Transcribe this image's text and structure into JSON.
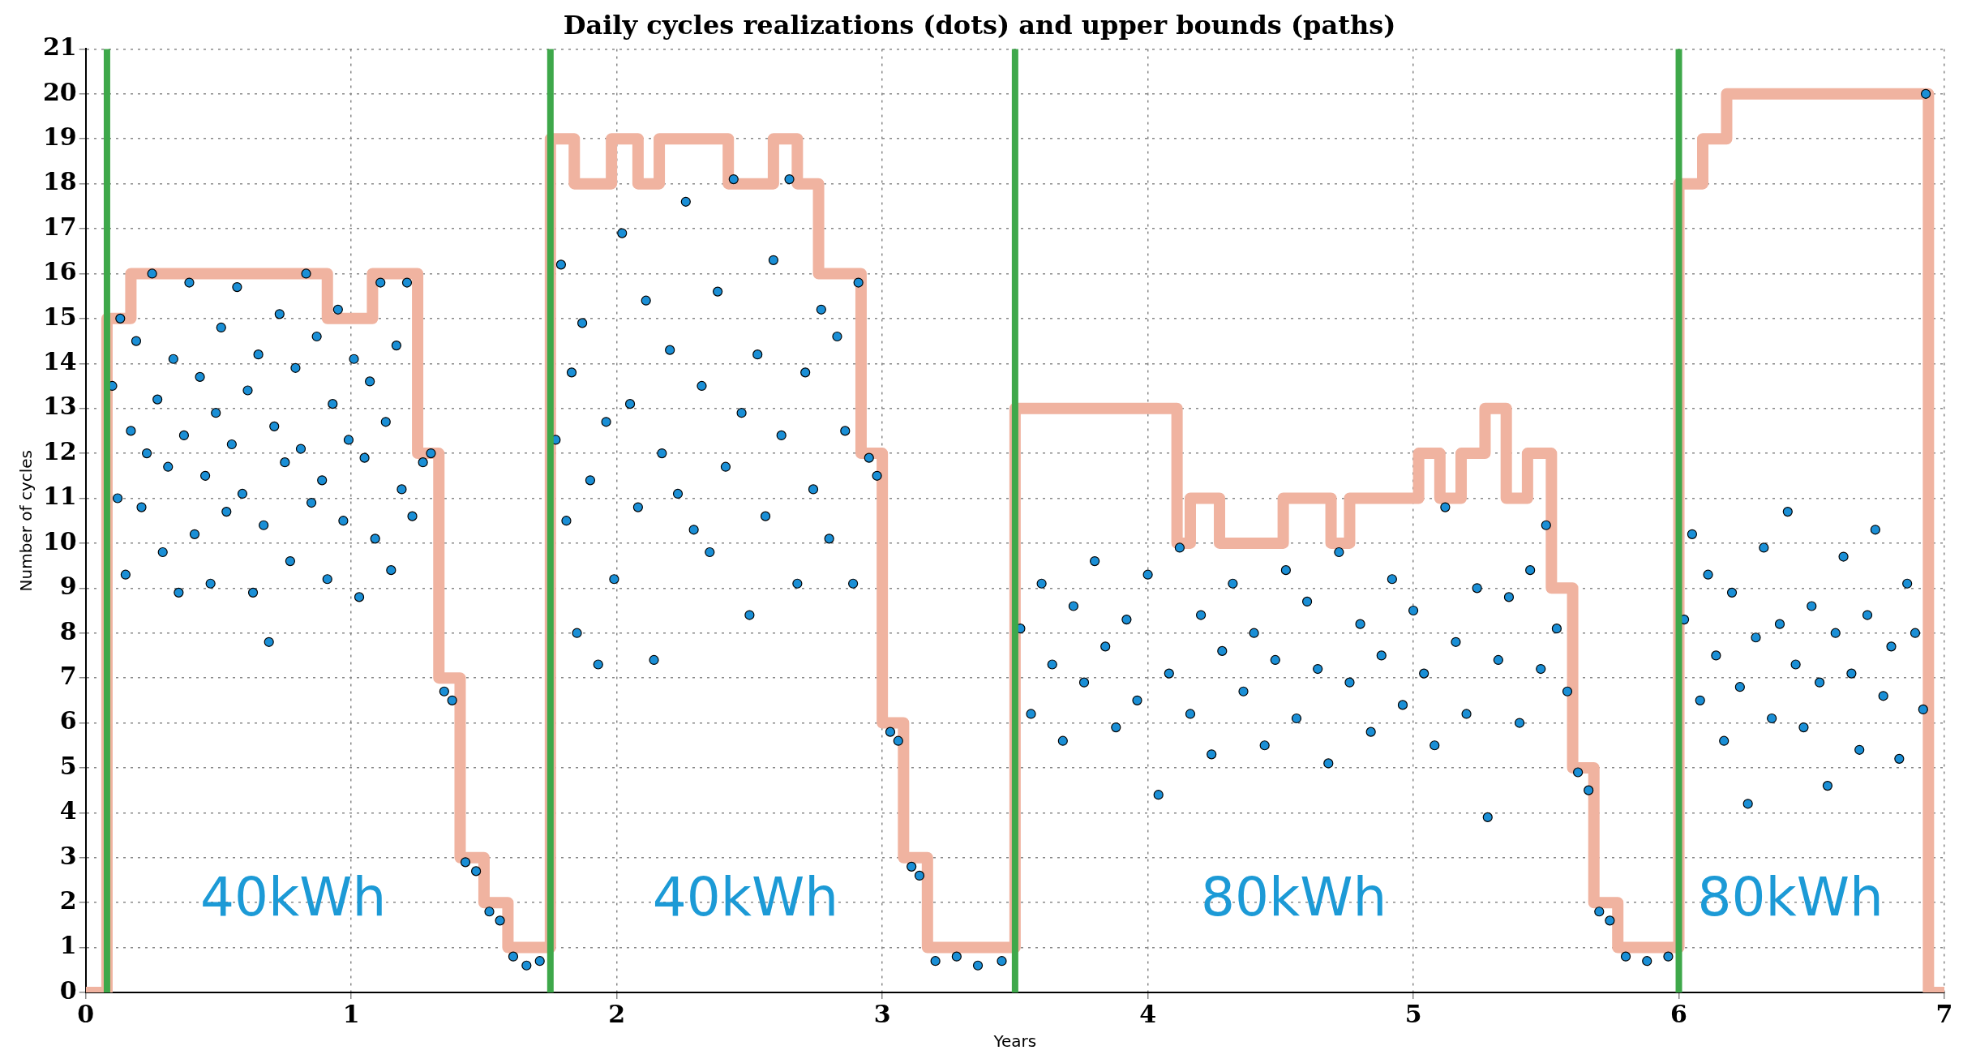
{
  "chart_data": {
    "type": "scatter",
    "title": "Daily cycles realizations (dots) and upper bounds (paths)",
    "xlabel": "Years",
    "ylabel": "Number of cycles",
    "xlim": [
      0,
      7
    ],
    "xticks": [
      0,
      1,
      2,
      3,
      4,
      5,
      6,
      7
    ],
    "ylim": [
      0,
      21
    ],
    "yticks": [
      0,
      1,
      2,
      3,
      4,
      5,
      6,
      7,
      8,
      9,
      10,
      11,
      12,
      13,
      14,
      15,
      16,
      17,
      18,
      19,
      20,
      21
    ],
    "grid": true,
    "legend": false,
    "series": [
      {
        "type": "step",
        "color": "#f0b3a0",
        "x": [
          0,
          0.08,
          0.17,
          0.91,
          1.08,
          1.25,
          1.33,
          1.41,
          1.5,
          1.59,
          1.75,
          1.84,
          1.98,
          2.08,
          2.16,
          2.42,
          2.59,
          2.68,
          2.76,
          2.92,
          3.0,
          3.08,
          3.17,
          3.5,
          4.11,
          4.16,
          4.27,
          4.51,
          4.69,
          4.76,
          5.02,
          5.1,
          5.18,
          5.27,
          5.35,
          5.43,
          5.52,
          5.6,
          5.68,
          5.77,
          6.0,
          6.09,
          6.18,
          6.94,
          7
        ],
        "values": [
          0,
          15,
          16,
          15,
          16,
          12,
          7,
          3,
          2,
          1,
          19,
          18,
          19,
          18,
          19,
          18,
          19,
          18,
          16,
          12,
          6,
          3,
          1,
          13,
          10,
          11,
          10,
          11,
          10,
          11,
          12,
          11,
          12,
          13,
          11,
          12,
          9,
          5,
          2,
          1,
          18,
          19,
          20,
          0,
          0
        ]
      },
      {
        "type": "scatter",
        "color": "#1a8fd6",
        "marker": "circle",
        "x": [
          0.1,
          0.12,
          0.13,
          0.15,
          0.17,
          0.19,
          0.21,
          0.23,
          0.25,
          0.27,
          0.29,
          0.31,
          0.33,
          0.35,
          0.37,
          0.39,
          0.41,
          0.43,
          0.45,
          0.47,
          0.49,
          0.51,
          0.53,
          0.55,
          0.57,
          0.59,
          0.61,
          0.63,
          0.65,
          0.67,
          0.69,
          0.71,
          0.73,
          0.75,
          0.77,
          0.79,
          0.81,
          0.83,
          0.85,
          0.87,
          0.89,
          0.91,
          0.93,
          0.95,
          0.97,
          0.99,
          1.01,
          1.03,
          1.05,
          1.07,
          1.09,
          1.11,
          1.13,
          1.15,
          1.17,
          1.19,
          1.21,
          1.23,
          1.27,
          1.3,
          1.35,
          1.38,
          1.43,
          1.47,
          1.52,
          1.56,
          1.61,
          1.66,
          1.71,
          1.77,
          1.79,
          1.81,
          1.83,
          1.85,
          1.87,
          1.9,
          1.93,
          1.96,
          1.99,
          2.02,
          2.05,
          2.08,
          2.11,
          2.14,
          2.17,
          2.2,
          2.23,
          2.26,
          2.29,
          2.32,
          2.35,
          2.38,
          2.41,
          2.44,
          2.47,
          2.5,
          2.53,
          2.56,
          2.59,
          2.62,
          2.65,
          2.68,
          2.71,
          2.74,
          2.77,
          2.8,
          2.83,
          2.86,
          2.89,
          2.91,
          2.95,
          2.98,
          3.03,
          3.06,
          3.11,
          3.14,
          3.2,
          3.28,
          3.36,
          3.45,
          3.52,
          3.56,
          3.6,
          3.64,
          3.68,
          3.72,
          3.76,
          3.8,
          3.84,
          3.88,
          3.92,
          3.96,
          4.0,
          4.04,
          4.08,
          4.12,
          4.16,
          4.2,
          4.24,
          4.28,
          4.32,
          4.36,
          4.4,
          4.44,
          4.48,
          4.52,
          4.56,
          4.6,
          4.64,
          4.68,
          4.72,
          4.76,
          4.8,
          4.84,
          4.88,
          4.92,
          4.96,
          5.0,
          5.04,
          5.08,
          5.12,
          5.16,
          5.2,
          5.24,
          5.28,
          5.32,
          5.36,
          5.4,
          5.44,
          5.48,
          5.5,
          5.54,
          5.58,
          5.62,
          5.66,
          5.7,
          5.74,
          5.8,
          5.88,
          5.96,
          6.02,
          6.05,
          6.08,
          6.11,
          6.14,
          6.17,
          6.2,
          6.23,
          6.26,
          6.29,
          6.32,
          6.35,
          6.38,
          6.41,
          6.44,
          6.47,
          6.5,
          6.53,
          6.56,
          6.59,
          6.62,
          6.65,
          6.68,
          6.71,
          6.74,
          6.77,
          6.8,
          6.83,
          6.86,
          6.89,
          6.92,
          6.93
        ],
        "values": [
          13.5,
          11,
          15,
          9.3,
          12.5,
          14.5,
          10.8,
          12,
          16,
          13.2,
          9.8,
          11.7,
          14.1,
          8.9,
          12.4,
          15.8,
          10.2,
          13.7,
          11.5,
          9.1,
          12.9,
          14.8,
          10.7,
          12.2,
          15.7,
          11.1,
          13.4,
          8.9,
          14.2,
          10.4,
          7.8,
          12.6,
          15.1,
          11.8,
          9.6,
          13.9,
          12.1,
          16,
          10.9,
          14.6,
          11.4,
          9.2,
          13.1,
          15.2,
          10.5,
          12.3,
          14.1,
          8.8,
          11.9,
          13.6,
          10.1,
          15.8,
          12.7,
          9.4,
          14.4,
          11.2,
          15.8,
          10.6,
          11.8,
          12,
          6.7,
          6.5,
          2.9,
          2.7,
          1.8,
          1.6,
          0.8,
          0.6,
          0.7,
          12.3,
          16.2,
          10.5,
          13.8,
          8,
          14.9,
          11.4,
          7.3,
          12.7,
          9.2,
          16.9,
          13.1,
          10.8,
          15.4,
          7.4,
          12,
          14.3,
          11.1,
          17.6,
          10.3,
          13.5,
          9.8,
          15.6,
          11.7,
          18.1,
          12.9,
          8.4,
          14.2,
          10.6,
          16.3,
          12.4,
          18.1,
          9.1,
          13.8,
          11.2,
          15.2,
          10.1,
          14.6,
          12.5,
          9.1,
          15.8,
          11.9,
          11.5,
          5.8,
          5.6,
          2.8,
          2.6,
          0.7,
          0.8,
          0.6,
          0.7,
          8.1,
          6.2,
          9.1,
          7.3,
          5.6,
          8.6,
          6.9,
          9.6,
          7.7,
          5.9,
          8.3,
          6.5,
          9.3,
          4.4,
          7.1,
          9.9,
          6.2,
          8.4,
          5.3,
          7.6,
          9.1,
          6.7,
          8,
          5.5,
          7.4,
          9.4,
          6.1,
          8.7,
          7.2,
          5.1,
          9.8,
          6.9,
          8.2,
          5.8,
          7.5,
          9.2,
          6.4,
          8.5,
          7.1,
          5.5,
          10.8,
          7.8,
          6.2,
          9,
          3.9,
          7.4,
          8.8,
          6,
          9.4,
          7.2,
          10.4,
          8.1,
          6.7,
          4.9,
          4.5,
          1.8,
          1.6,
          0.8,
          0.7,
          0.8,
          8.3,
          10.2,
          6.5,
          9.3,
          7.5,
          5.6,
          8.9,
          6.8,
          4.2,
          7.9,
          9.9,
          6.1,
          8.2,
          10.7,
          7.3,
          5.9,
          8.6,
          6.9,
          4.6,
          8,
          9.7,
          7.1,
          5.4,
          8.4,
          10.3,
          6.6,
          7.7,
          5.2,
          9.1,
          8,
          6.3,
          20
        ]
      }
    ],
    "ref_lines": [
      {
        "axis": "x",
        "value": 0.08,
        "color": "#3ea84a"
      },
      {
        "axis": "x",
        "value": 1.75,
        "color": "#3ea84a"
      },
      {
        "axis": "x",
        "value": 3.5,
        "color": "#3ea84a"
      },
      {
        "axis": "x",
        "value": 6.0,
        "color": "#3ea84a"
      }
    ],
    "annotations": [
      "40kWh",
      "40kWh",
      "80kWh",
      "80kWh"
    ]
  }
}
